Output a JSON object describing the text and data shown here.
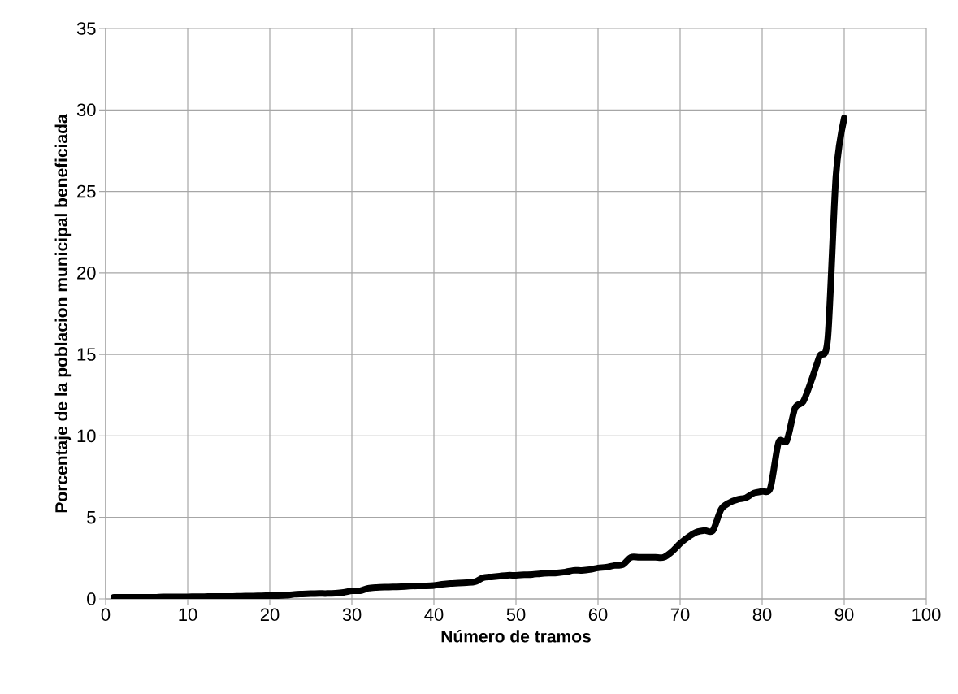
{
  "chart_data": {
    "type": "line",
    "xlabel": "Número de tramos",
    "ylabel": "Porcentaje de la poblacion municipal beneficiada",
    "x": [
      1,
      2,
      3,
      4,
      5,
      6,
      7,
      8,
      9,
      10,
      11,
      12,
      13,
      14,
      15,
      16,
      17,
      18,
      19,
      20,
      21,
      22,
      23,
      24,
      25,
      26,
      27,
      28,
      29,
      30,
      31,
      32,
      33,
      34,
      35,
      36,
      37,
      38,
      39,
      40,
      41,
      42,
      43,
      44,
      45,
      46,
      47,
      48,
      49,
      50,
      51,
      52,
      53,
      54,
      55,
      56,
      57,
      58,
      59,
      60,
      61,
      62,
      63,
      64,
      65,
      66,
      67,
      68,
      69,
      70,
      71,
      72,
      73,
      74,
      75,
      76,
      77,
      78,
      79,
      80,
      81,
      82,
      83,
      84,
      85,
      86,
      87,
      88,
      89,
      90
    ],
    "values": [
      0.1,
      0.1,
      0.1,
      0.1,
      0.1,
      0.1,
      0.12,
      0.12,
      0.12,
      0.13,
      0.14,
      0.14,
      0.15,
      0.15,
      0.15,
      0.16,
      0.17,
      0.18,
      0.19,
      0.2,
      0.2,
      0.22,
      0.28,
      0.3,
      0.32,
      0.33,
      0.33,
      0.35,
      0.4,
      0.5,
      0.5,
      0.65,
      0.7,
      0.72,
      0.73,
      0.75,
      0.78,
      0.8,
      0.8,
      0.82,
      0.9,
      0.95,
      0.97,
      1.0,
      1.05,
      1.3,
      1.35,
      1.4,
      1.45,
      1.45,
      1.48,
      1.5,
      1.55,
      1.58,
      1.6,
      1.65,
      1.75,
      1.75,
      1.8,
      1.9,
      1.95,
      2.05,
      2.1,
      2.55,
      2.55,
      2.55,
      2.55,
      2.55,
      2.9,
      3.4,
      3.8,
      4.1,
      4.2,
      4.2,
      5.5,
      5.9,
      6.1,
      6.2,
      6.5,
      6.6,
      6.8,
      9.6,
      9.7,
      11.7,
      12.1,
      13.4,
      14.9,
      16.0,
      26,
      29.5
    ],
    "color": "#000000",
    "xlim": [
      0,
      100
    ],
    "ylim": [
      0,
      35
    ],
    "xticks": [
      0,
      10,
      20,
      30,
      40,
      50,
      60,
      70,
      80,
      90,
      100
    ],
    "yticks": [
      0,
      5,
      10,
      15,
      20,
      25,
      30,
      35
    ],
    "grid": true
  }
}
